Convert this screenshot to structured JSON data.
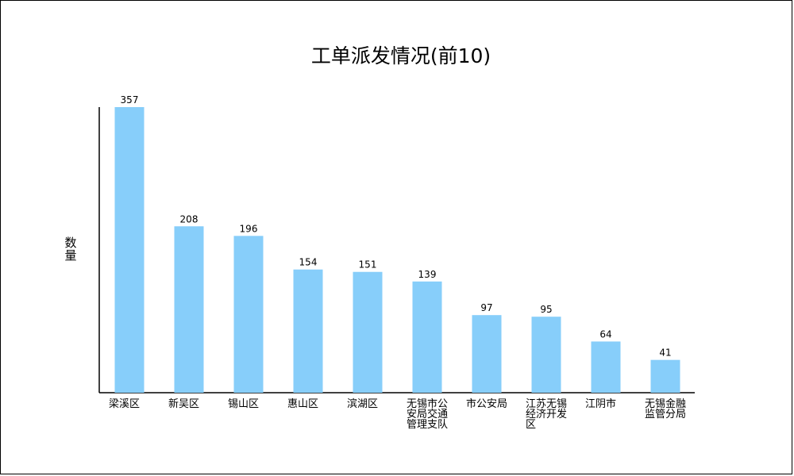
{
  "chart_data": {
    "type": "bar",
    "title": "工单派发情况(前10)",
    "ylabel": "数量",
    "xlabel": "",
    "ylim": [
      0,
      370
    ],
    "grid": false,
    "legend": "none",
    "bar_color": "#87CEFA",
    "categories": [
      "梁溪区",
      "新吴区",
      "锡山区",
      "惠山区",
      "滨湖区",
      "无锡市公安局交通管理支队",
      "市公安局",
      "江苏无锡经济开发区",
      "江阴市",
      "无锡金融监管分局"
    ],
    "category_lines": [
      [
        "梁溪区"
      ],
      [
        "新吴区"
      ],
      [
        "锡山区"
      ],
      [
        "惠山区"
      ],
      [
        "滨湖区"
      ],
      [
        "无锡市公",
        "安局交通",
        "管理支队"
      ],
      [
        "市公安局"
      ],
      [
        "江苏无锡",
        "经济开发",
        "区"
      ],
      [
        "江阴市"
      ],
      [
        "无锡金融",
        "监管分局"
      ]
    ],
    "values": [
      357,
      208,
      196,
      154,
      151,
      139,
      97,
      95,
      64,
      41
    ]
  }
}
